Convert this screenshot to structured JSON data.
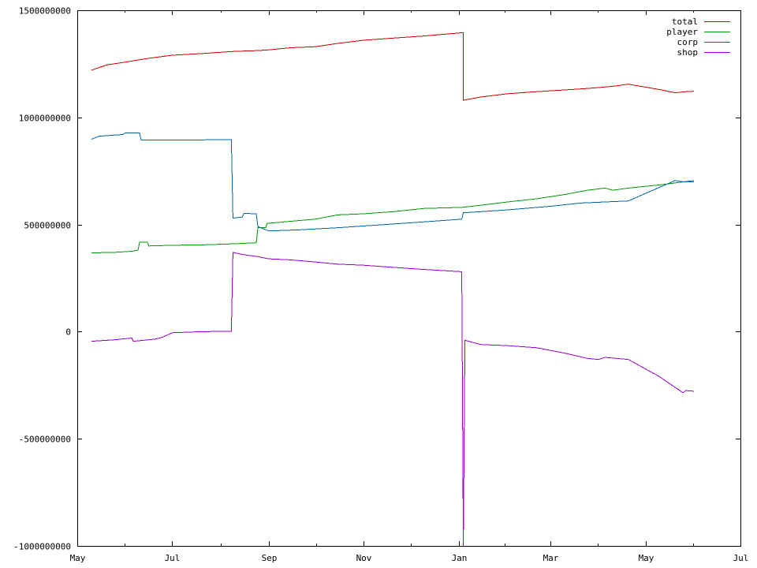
{
  "chart_data": {
    "type": "line",
    "title": "",
    "xlabel": "",
    "ylabel": "",
    "xlim": [
      "2000-05-01",
      "2001-07-01"
    ],
    "ylim": [
      -1000000000,
      1500000000
    ],
    "grid": false,
    "legend": "top-right",
    "x_ticks": [
      {
        "label": "May",
        "date": "2000-05-01"
      },
      {
        "label": "Jul",
        "date": "2000-07-01"
      },
      {
        "label": "Sep",
        "date": "2000-09-01"
      },
      {
        "label": "Nov",
        "date": "2000-11-01"
      },
      {
        "label": "Jan",
        "date": "2001-01-01"
      },
      {
        "label": "Mar",
        "date": "2001-03-01"
      },
      {
        "label": "May",
        "date": "2001-05-01"
      },
      {
        "label": "Jul",
        "date": "2001-07-01"
      }
    ],
    "y_ticks": [
      {
        "label": "1500000000",
        "value": 1500000000
      },
      {
        "label": "1000000000",
        "value": 1000000000
      },
      {
        "label": "500000000",
        "value": 500000000
      },
      {
        "label": "0",
        "value": 0
      },
      {
        "label": "-500000000",
        "value": -500000000
      },
      {
        "label": "-1000000000",
        "value": -1000000000
      }
    ],
    "series": [
      {
        "name": "total",
        "color": "#cc0000",
        "points": [
          [
            "2000-05-10",
            1220000000
          ],
          [
            "2000-05-20",
            1245000000
          ],
          [
            "2000-06-01",
            1258000000
          ],
          [
            "2000-06-15",
            1275000000
          ],
          [
            "2000-07-01",
            1290000000
          ],
          [
            "2000-07-20",
            1298000000
          ],
          [
            "2000-08-10",
            1308000000
          ],
          [
            "2000-08-25",
            1312000000
          ],
          [
            "2000-09-01",
            1315000000
          ],
          [
            "2000-09-15",
            1325000000
          ],
          [
            "2000-10-01",
            1330000000
          ],
          [
            "2000-10-15",
            1345000000
          ],
          [
            "2000-11-01",
            1360000000
          ],
          [
            "2000-11-20",
            1370000000
          ],
          [
            "2000-12-10",
            1380000000
          ],
          [
            "2001-01-03",
            1395000000
          ],
          [
            "2001-01-04",
            1395000000
          ],
          [
            "2001-01-04",
            1080000000
          ],
          [
            "2001-01-15",
            1095000000
          ],
          [
            "2001-02-01",
            1110000000
          ],
          [
            "2001-02-20",
            1120000000
          ],
          [
            "2001-03-10",
            1128000000
          ],
          [
            "2001-03-25",
            1135000000
          ],
          [
            "2001-04-10",
            1145000000
          ],
          [
            "2001-04-20",
            1155000000
          ],
          [
            "2001-05-10",
            1130000000
          ],
          [
            "2001-05-20",
            1115000000
          ],
          [
            "2001-05-27",
            1120000000
          ],
          [
            "2001-06-01",
            1122000000
          ]
        ]
      },
      {
        "name": "player",
        "color": "#009900",
        "points": [
          [
            "2000-05-10",
            368000000
          ],
          [
            "2000-05-25",
            370000000
          ],
          [
            "2000-06-05",
            375000000
          ],
          [
            "2000-06-09",
            380000000
          ],
          [
            "2000-06-10",
            418000000
          ],
          [
            "2000-06-15",
            418000000
          ],
          [
            "2000-06-16",
            400000000
          ],
          [
            "2000-07-01",
            403000000
          ],
          [
            "2000-07-20",
            405000000
          ],
          [
            "2000-08-10",
            410000000
          ],
          [
            "2000-08-24",
            415000000
          ],
          [
            "2000-08-25",
            485000000
          ],
          [
            "2000-08-30",
            485000000
          ],
          [
            "2000-08-31",
            505000000
          ],
          [
            "2000-09-15",
            515000000
          ],
          [
            "2000-10-01",
            525000000
          ],
          [
            "2000-10-15",
            545000000
          ],
          [
            "2000-11-01",
            550000000
          ],
          [
            "2000-11-20",
            560000000
          ],
          [
            "2000-12-10",
            575000000
          ],
          [
            "2001-01-03",
            580000000
          ],
          [
            "2001-01-15",
            590000000
          ],
          [
            "2001-02-01",
            605000000
          ],
          [
            "2001-02-20",
            620000000
          ],
          [
            "2001-03-10",
            640000000
          ],
          [
            "2001-03-25",
            660000000
          ],
          [
            "2001-04-05",
            670000000
          ],
          [
            "2001-04-10",
            660000000
          ],
          [
            "2001-04-20",
            670000000
          ],
          [
            "2001-05-10",
            685000000
          ],
          [
            "2001-06-01",
            705000000
          ]
        ]
      },
      {
        "name": "corp",
        "color": "#0066aa",
        "points": [
          [
            "2000-05-10",
            898000000
          ],
          [
            "2000-05-15",
            912000000
          ],
          [
            "2000-05-30",
            920000000
          ],
          [
            "2000-06-01",
            928000000
          ],
          [
            "2000-06-10",
            928000000
          ],
          [
            "2000-06-11",
            895000000
          ],
          [
            "2000-07-20",
            895000000
          ],
          [
            "2000-08-08",
            897000000
          ],
          [
            "2000-08-09",
            530000000
          ],
          [
            "2000-08-15",
            535000000
          ],
          [
            "2000-08-16",
            552000000
          ],
          [
            "2000-08-24",
            550000000
          ],
          [
            "2000-08-25",
            490000000
          ],
          [
            "2000-09-01",
            470000000
          ],
          [
            "2000-09-20",
            475000000
          ],
          [
            "2000-10-15",
            485000000
          ],
          [
            "2000-11-15",
            500000000
          ],
          [
            "2000-12-15",
            515000000
          ],
          [
            "2001-01-03",
            525000000
          ],
          [
            "2001-01-04",
            555000000
          ],
          [
            "2001-02-01",
            568000000
          ],
          [
            "2001-03-01",
            585000000
          ],
          [
            "2001-03-20",
            600000000
          ],
          [
            "2001-04-20",
            610000000
          ],
          [
            "2001-05-20",
            705000000
          ],
          [
            "2001-05-25",
            700000000
          ],
          [
            "2001-06-01",
            700000000
          ]
        ]
      },
      {
        "name": "shop",
        "color": "#9900cc",
        "points": [
          [
            "2000-05-10",
            -45000000
          ],
          [
            "2000-05-25",
            -38000000
          ],
          [
            "2000-06-05",
            -30000000
          ],
          [
            "2000-06-06",
            -45000000
          ],
          [
            "2000-06-20",
            -35000000
          ],
          [
            "2000-06-25",
            -25000000
          ],
          [
            "2000-07-01",
            -5000000
          ],
          [
            "2000-07-20",
            0
          ],
          [
            "2000-08-08",
            2000000
          ],
          [
            "2000-08-09",
            370000000
          ],
          [
            "2000-08-15",
            360000000
          ],
          [
            "2000-08-25",
            350000000
          ],
          [
            "2000-09-01",
            340000000
          ],
          [
            "2000-09-15",
            335000000
          ],
          [
            "2000-10-01",
            325000000
          ],
          [
            "2000-10-15",
            315000000
          ],
          [
            "2000-11-01",
            310000000
          ],
          [
            "2000-11-20",
            300000000
          ],
          [
            "2000-12-10",
            290000000
          ],
          [
            "2001-01-03",
            280000000
          ],
          [
            "2001-01-04",
            -1000000000
          ],
          [
            "2001-01-05",
            -40000000
          ],
          [
            "2001-01-15",
            -60000000
          ],
          [
            "2001-02-01",
            -65000000
          ],
          [
            "2001-02-20",
            -75000000
          ],
          [
            "2001-03-10",
            -100000000
          ],
          [
            "2001-03-25",
            -125000000
          ],
          [
            "2001-04-01",
            -130000000
          ],
          [
            "2001-04-05",
            -120000000
          ],
          [
            "2001-04-20",
            -130000000
          ],
          [
            "2001-05-10",
            -210000000
          ],
          [
            "2001-05-25",
            -285000000
          ],
          [
            "2001-05-27",
            -275000000
          ],
          [
            "2001-06-01",
            -278000000
          ]
        ]
      }
    ]
  }
}
